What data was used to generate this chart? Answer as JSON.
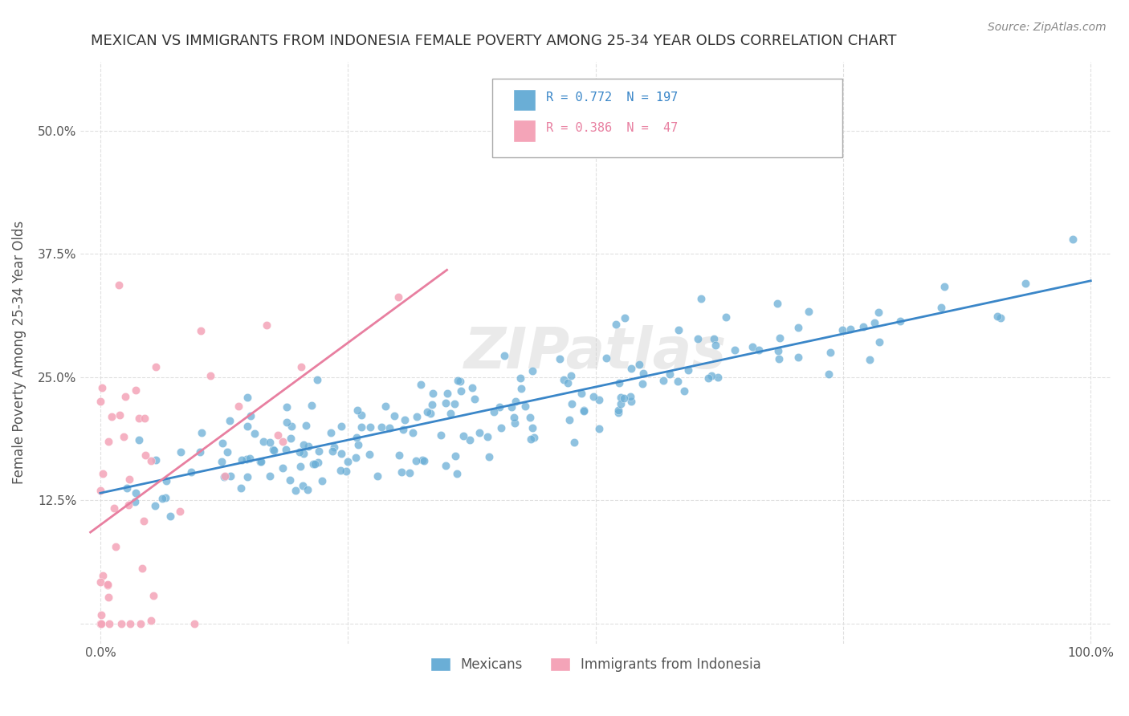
{
  "title": "MEXICAN VS IMMIGRANTS FROM INDONESIA FEMALE POVERTY AMONG 25-34 YEAR OLDS CORRELATION CHART",
  "source": "Source: ZipAtlas.com",
  "ylabel": "Female Poverty Among 25-34 Year Olds",
  "xlabel": "",
  "xlim": [
    -0.02,
    1.02
  ],
  "ylim": [
    -0.02,
    0.57
  ],
  "xticks": [
    0.0,
    0.25,
    0.5,
    0.75,
    1.0
  ],
  "xticklabels": [
    "0.0%",
    "",
    "",
    "",
    "100.0%"
  ],
  "yticks": [
    0.0,
    0.125,
    0.25,
    0.375,
    0.5
  ],
  "yticklabels": [
    "",
    "12.5%",
    "25.0%",
    "37.5%",
    "50.0%"
  ],
  "mexican_color": "#6aaed6",
  "indonesia_color": "#f4a4b8",
  "mexican_line_color": "#3a86c8",
  "indonesia_line_color": "#e87fa0",
  "r_mexican": 0.772,
  "n_mexican": 197,
  "r_indonesia": 0.386,
  "n_indonesia": 47,
  "watermark": "ZIPatlas",
  "background_color": "#ffffff",
  "grid_color": "#e0e0e0",
  "mexican_seed": 42,
  "indonesia_seed": 7,
  "legend_label_mexican": "Mexicans",
  "legend_label_indonesia": "Immigrants from Indonesia"
}
